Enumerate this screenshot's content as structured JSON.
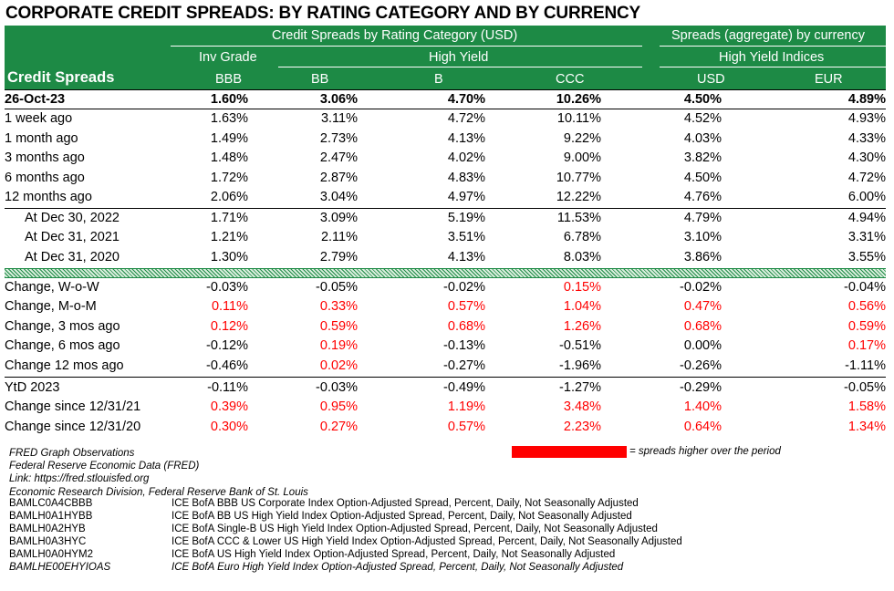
{
  "title": "CORPORATE CREDIT SPREADS: BY RATING CATEGORY AND BY CURRENCY",
  "header": {
    "group1": "Credit Spreads by Rating Category (USD)",
    "group2": "Spreads (aggregate) by currency",
    "row_label": "Credit Spreads",
    "inv_grade": "Inv Grade",
    "high_yield": "High Yield",
    "hy_indices": "High Yield Indices",
    "cols": [
      "BBB",
      "BB",
      "B",
      "CCC",
      "USD",
      "EUR"
    ]
  },
  "section_levels": [
    {
      "label": "26-Oct-23",
      "values": [
        "1.60%",
        "3.06%",
        "4.70%",
        "10.26%",
        "4.50%",
        "4.89%"
      ],
      "red": [
        false,
        false,
        false,
        false,
        false,
        false
      ]
    },
    {
      "label": "1 week ago",
      "values": [
        "1.63%",
        "3.11%",
        "4.72%",
        "10.11%",
        "4.52%",
        "4.93%"
      ],
      "red": [
        false,
        false,
        false,
        false,
        false,
        false
      ]
    },
    {
      "label": "1 month ago",
      "values": [
        "1.49%",
        "2.73%",
        "4.13%",
        "9.22%",
        "4.03%",
        "4.33%"
      ],
      "red": [
        false,
        false,
        false,
        false,
        false,
        false
      ]
    },
    {
      "label": "3 months ago",
      "values": [
        "1.48%",
        "2.47%",
        "4.02%",
        "9.00%",
        "3.82%",
        "4.30%"
      ],
      "red": [
        false,
        false,
        false,
        false,
        false,
        false
      ]
    },
    {
      "label": "6 months ago",
      "values": [
        "1.72%",
        "2.87%",
        "4.83%",
        "10.77%",
        "4.50%",
        "4.72%"
      ],
      "red": [
        false,
        false,
        false,
        false,
        false,
        false
      ]
    },
    {
      "label": "12 months ago",
      "values": [
        "2.06%",
        "3.04%",
        "4.97%",
        "12.22%",
        "4.76%",
        "6.00%"
      ],
      "red": [
        false,
        false,
        false,
        false,
        false,
        false
      ]
    }
  ],
  "section_yearend": [
    {
      "label": "At Dec 30, 2022",
      "values": [
        "1.71%",
        "3.09%",
        "5.19%",
        "11.53%",
        "4.79%",
        "4.94%"
      ],
      "red": [
        false,
        false,
        false,
        false,
        false,
        false
      ]
    },
    {
      "label": "At Dec 31, 2021",
      "values": [
        "1.21%",
        "2.11%",
        "3.51%",
        "6.78%",
        "3.10%",
        "3.31%"
      ],
      "red": [
        false,
        false,
        false,
        false,
        false,
        false
      ]
    },
    {
      "label": "At Dec 31, 2020",
      "values": [
        "1.30%",
        "2.79%",
        "4.13%",
        "8.03%",
        "3.86%",
        "3.55%"
      ],
      "red": [
        false,
        false,
        false,
        false,
        false,
        false
      ]
    }
  ],
  "section_changes": [
    {
      "label": "Change, W-o-W",
      "values": [
        "-0.03%",
        "-0.05%",
        "-0.02%",
        "0.15%",
        "-0.02%",
        "-0.04%"
      ],
      "red": [
        false,
        false,
        false,
        true,
        false,
        false
      ]
    },
    {
      "label": "Change, M-o-M",
      "values": [
        "0.11%",
        "0.33%",
        "0.57%",
        "1.04%",
        "0.47%",
        "0.56%"
      ],
      "red": [
        true,
        true,
        true,
        true,
        true,
        true
      ]
    },
    {
      "label": "Change, 3 mos ago",
      "values": [
        "0.12%",
        "0.59%",
        "0.68%",
        "1.26%",
        "0.68%",
        "0.59%"
      ],
      "red": [
        true,
        true,
        true,
        true,
        true,
        true
      ]
    },
    {
      "label": "Change, 6 mos ago",
      "values": [
        "-0.12%",
        "0.19%",
        "-0.13%",
        "-0.51%",
        "0.00%",
        "0.17%"
      ],
      "red": [
        false,
        true,
        false,
        false,
        false,
        true
      ]
    },
    {
      "label": "Change 12 mos ago",
      "values": [
        "-0.46%",
        "0.02%",
        "-0.27%",
        "-1.96%",
        "-0.26%",
        "-1.11%"
      ],
      "red": [
        false,
        true,
        false,
        false,
        false,
        false
      ]
    }
  ],
  "section_ytd": [
    {
      "label": "YtD 2023",
      "values": [
        "-0.11%",
        "-0.03%",
        "-0.49%",
        "-1.27%",
        "-0.29%",
        "-0.05%"
      ],
      "red": [
        false,
        false,
        false,
        false,
        false,
        false
      ]
    },
    {
      "label": "Change since 12/31/21",
      "values": [
        "0.39%",
        "0.95%",
        "1.19%",
        "3.48%",
        "1.40%",
        "1.58%"
      ],
      "red": [
        true,
        true,
        true,
        true,
        true,
        true
      ]
    },
    {
      "label": "Change since 12/31/20",
      "values": [
        "0.30%",
        "0.27%",
        "0.57%",
        "2.23%",
        "0.64%",
        "1.34%"
      ],
      "red": [
        true,
        true,
        true,
        true,
        true,
        true
      ]
    }
  ],
  "notes": [
    "FRED Graph Observations",
    "Federal Reserve Economic Data (FRED)",
    "Link: https://fred.stlouisfed.org",
    "Economic Research Division, Federal Reserve Bank of St. Louis"
  ],
  "legend": {
    "text": "= spreads higher over the period",
    "color": "#ff0000"
  },
  "series": [
    {
      "code": "BAMLC0A4CBBB",
      "desc": "ICE BofA BBB US Corporate Index Option-Adjusted Spread, Percent, Daily, Not Seasonally Adjusted"
    },
    {
      "code": "BAMLH0A1HYBB",
      "desc": "ICE BofA BB US High Yield Index Option-Adjusted Spread, Percent, Daily, Not Seasonally Adjusted"
    },
    {
      "code": "BAMLH0A2HYB",
      "desc": "ICE BofA Single-B US High Yield Index Option-Adjusted Spread, Percent, Daily, Not Seasonally Adjusted"
    },
    {
      "code": "BAMLH0A3HYC",
      "desc": "ICE BofA CCC & Lower US High Yield Index Option-Adjusted Spread, Percent, Daily, Not Seasonally Adjusted"
    },
    {
      "code": "BAMLH0A0HYM2",
      "desc": "ICE BofA US High Yield Index Option-Adjusted Spread, Percent, Daily, Not Seasonally Adjusted"
    },
    {
      "code": "BAMLHE00EHYIOAS",
      "desc": "ICE BofA Euro High Yield Index Option-Adjusted Spread, Percent, Daily, Not Seasonally Adjusted"
    }
  ],
  "colors": {
    "header_green": "#1d8a45",
    "highlight_red": "#ff0000"
  }
}
